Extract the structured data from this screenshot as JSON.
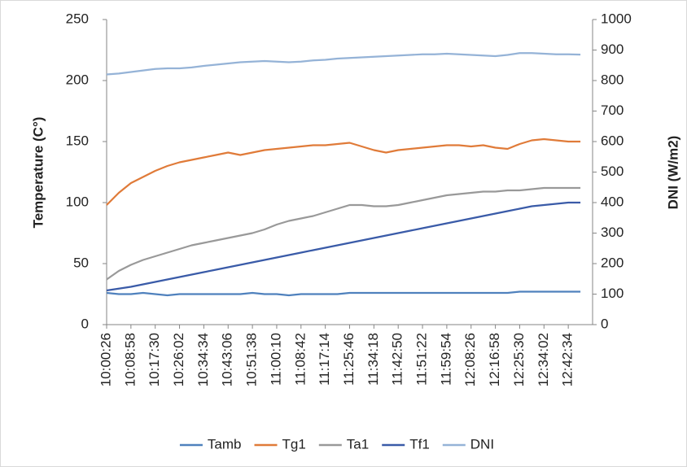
{
  "chart_data": {
    "type": "line",
    "y_label": "Temperature (C°)",
    "y2_label": "DNI (W/m2)",
    "categories": [
      "10:00:26",
      null,
      "10:08:58",
      null,
      "10:17:30",
      null,
      "10:26:02",
      null,
      "10:34:34",
      null,
      "10:43:06",
      null,
      "10:51:38",
      null,
      "11:00:10",
      null,
      "11:08:42",
      null,
      "11:17:14",
      null,
      "11:25:46",
      null,
      "11:34:18",
      null,
      "11:42:50",
      null,
      "11:51:22",
      null,
      "11:59:54",
      null,
      "12:08:26",
      null,
      "12:16:58",
      null,
      "12:25:30",
      null,
      "12:34:02",
      null,
      "12:42:34",
      null
    ],
    "series": [
      {
        "name": "Tamb",
        "color": "#4f81bd",
        "values": [
          26,
          25,
          25,
          26,
          25,
          24,
          25,
          25,
          25,
          25,
          25,
          25,
          26,
          25,
          25,
          24,
          25,
          25,
          25,
          25,
          26,
          26,
          26,
          26,
          26,
          26,
          26,
          26,
          26,
          26,
          26,
          26,
          26,
          26,
          27,
          27,
          27,
          27,
          27,
          27
        ]
      },
      {
        "name": "Tg1",
        "color": "#e07b39",
        "values": [
          98,
          108,
          116,
          121,
          126,
          130,
          133,
          135,
          137,
          139,
          141,
          139,
          141,
          143,
          144,
          145,
          146,
          147,
          147,
          148,
          149,
          146,
          143,
          141,
          143,
          144,
          145,
          146,
          147,
          147,
          146,
          147,
          145,
          144,
          148,
          151,
          152,
          151,
          150,
          150
        ]
      },
      {
        "name": "Ta1",
        "color": "#999999",
        "values": [
          37,
          44,
          49,
          53,
          56,
          59,
          62,
          65,
          67,
          69,
          71,
          73,
          75,
          78,
          82,
          85,
          87,
          89,
          92,
          95,
          98,
          98,
          97,
          97,
          98,
          100,
          102,
          104,
          106,
          107,
          108,
          109,
          109,
          110,
          110,
          111,
          112,
          112,
          112,
          112
        ]
      },
      {
        "name": "Tf1",
        "color": "#3a5ba8",
        "values": [
          28,
          29.5,
          31,
          33,
          35,
          37,
          39,
          41,
          43,
          45,
          47,
          49,
          51,
          53,
          55,
          57,
          59,
          61,
          63,
          65,
          67,
          69,
          71,
          73,
          75,
          77,
          79,
          81,
          83,
          85,
          87,
          89,
          91,
          93,
          95,
          97,
          98,
          99,
          100,
          100
        ]
      },
      {
        "name": "DNI",
        "color": "#95b3d7",
        "axis": "y2",
        "values": [
          820,
          823,
          828,
          833,
          838,
          840,
          840,
          843,
          848,
          852,
          856,
          860,
          862,
          864,
          862,
          860,
          862,
          866,
          868,
          872,
          874,
          876,
          878,
          880,
          882,
          884,
          886,
          886,
          888,
          886,
          884,
          882,
          880,
          884,
          890,
          890,
          888,
          886,
          886,
          885
        ]
      }
    ],
    "ylim": [
      0,
      250
    ],
    "yticks": [
      0,
      50,
      100,
      150,
      200,
      250
    ],
    "y2lim": [
      0,
      1000
    ],
    "y2ticks": [
      0,
      100,
      200,
      300,
      400,
      500,
      600,
      700,
      800,
      900,
      1000
    ],
    "legend": "bottom"
  }
}
